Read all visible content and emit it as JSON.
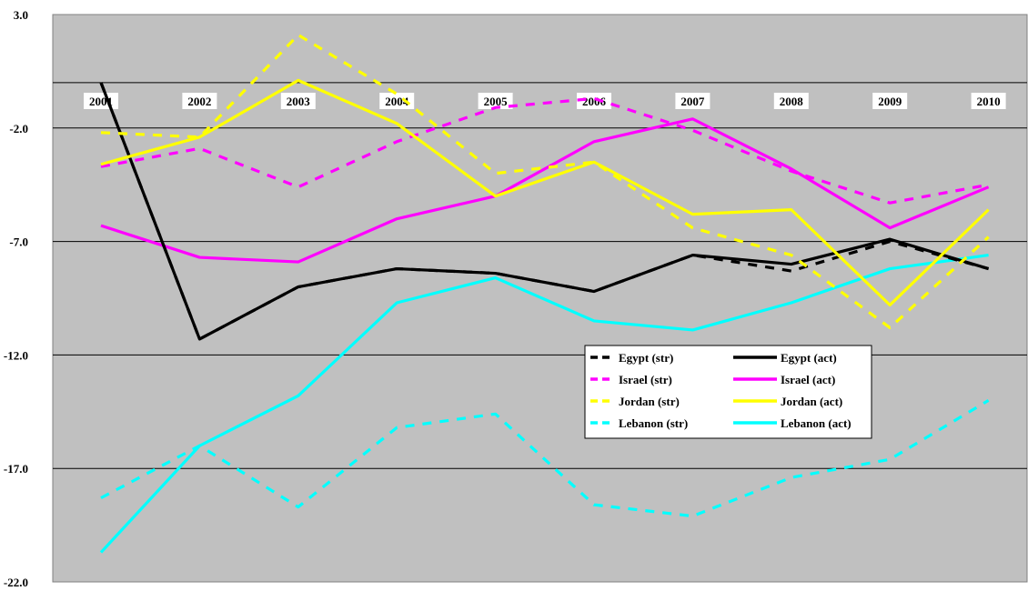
{
  "chart_data": {
    "type": "line",
    "categories": [
      "2001",
      "2002",
      "2003",
      "2004",
      "2005",
      "2006",
      "2007",
      "2008",
      "2009",
      "2010"
    ],
    "y_ticks": [
      "3.0",
      "-2.0",
      "-7.0",
      "-12.0",
      "-17.0",
      "-22.0"
    ],
    "ylim": [
      -22,
      3
    ],
    "grid": true,
    "legend_position": "center-right",
    "background_color": "#c0c0c0",
    "series": [
      {
        "name": "Egypt (str)",
        "style": "dashed",
        "color": "#000000",
        "values": [
          0.0,
          -11.3,
          -9.0,
          -8.2,
          -8.4,
          -9.2,
          -7.6,
          -8.3,
          -7.0,
          -8.2
        ]
      },
      {
        "name": "Egypt (act)",
        "style": "solid",
        "color": "#000000",
        "values": [
          0.0,
          -11.3,
          -9.0,
          -8.2,
          -8.4,
          -9.2,
          -7.6,
          -8.0,
          -6.9,
          -8.2
        ]
      },
      {
        "name": "Israel (str)",
        "style": "dashed",
        "color": "#ff00ff",
        "values": [
          -3.7,
          -2.9,
          -4.6,
          -2.6,
          -1.1,
          -0.7,
          -2.1,
          -3.9,
          -5.3,
          -4.5
        ]
      },
      {
        "name": "Israel (act)",
        "style": "solid",
        "color": "#ff00ff",
        "values": [
          -6.3,
          -7.7,
          -7.9,
          -6.0,
          -5.0,
          -2.6,
          -1.6,
          -3.8,
          -6.4,
          -4.6
        ]
      },
      {
        "name": "Jordan (str)",
        "style": "dashed",
        "color": "#ffff00",
        "values": [
          -2.2,
          -2.4,
          2.1,
          -0.5,
          -4.0,
          -3.5,
          -6.4,
          -7.6,
          -10.8,
          -6.8
        ]
      },
      {
        "name": "Jordan (act)",
        "style": "solid",
        "color": "#ffff00",
        "values": [
          -3.6,
          -2.4,
          0.1,
          -1.8,
          -5.0,
          -3.5,
          -5.8,
          -5.6,
          -9.8,
          -5.6
        ]
      },
      {
        "name": "Lebanon (str)",
        "style": "dashed",
        "color": "#00ffff",
        "values": [
          -18.3,
          -16.0,
          -18.7,
          -15.2,
          -14.6,
          -18.6,
          -19.1,
          -17.4,
          -16.6,
          -14.0
        ]
      },
      {
        "name": "Lebanon (act)",
        "style": "solid",
        "color": "#00ffff",
        "values": [
          -20.7,
          -16.0,
          -13.8,
          -9.7,
          -8.6,
          -10.5,
          -10.9,
          -9.7,
          -8.2,
          -7.6
        ]
      }
    ]
  }
}
